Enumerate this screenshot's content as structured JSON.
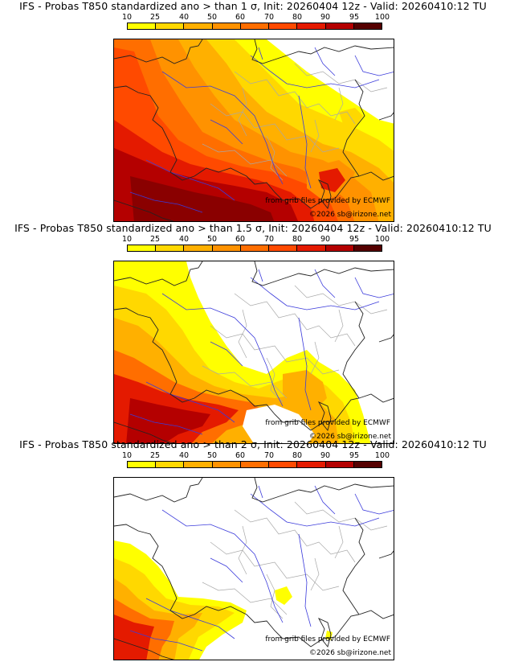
{
  "colors": {
    "c10": "#ffff00",
    "c25": "#ffd800",
    "c40": "#ffb000",
    "c50": "#ff9200",
    "c60": "#ff6e00",
    "c70": "#ff4a00",
    "c80": "#e41a00",
    "c90": "#b40000",
    "c95": "#8a0000",
    "c100": "#550000",
    "border_black": "#222222",
    "river_blue": "#3b3bdb",
    "admin_grey": "#a8a8a8"
  },
  "scale_labels": [
    "10",
    "25",
    "40",
    "50",
    "60",
    "70",
    "80",
    "90",
    "95",
    "100"
  ],
  "panels": [
    {
      "title": "IFS - Probas T850  standardized ano > than 1 σ, Init: 20260404 12z - Valid: 20260410:12 TU",
      "credit_source": "from grib files provided by ECMWF",
      "credit_copyright": "©2026 sb@irizone.net"
    },
    {
      "title": "IFS - Probas T850  standardized ano > than 1.5 σ, Init: 20260404 12z - Valid: 20260410:12 TU",
      "credit_source": "from grib files provided by ECMWF",
      "credit_copyright": "©2026 sb@irizone.net"
    },
    {
      "title": "IFS - Probas T850  standardized ano > than 2 σ, Init: 20260404 12z - Valid: 20260410:12 TU",
      "credit_source": "from grib files provided by ECMWF",
      "credit_copyright": "©2026 sb@irizone.net"
    }
  ]
}
